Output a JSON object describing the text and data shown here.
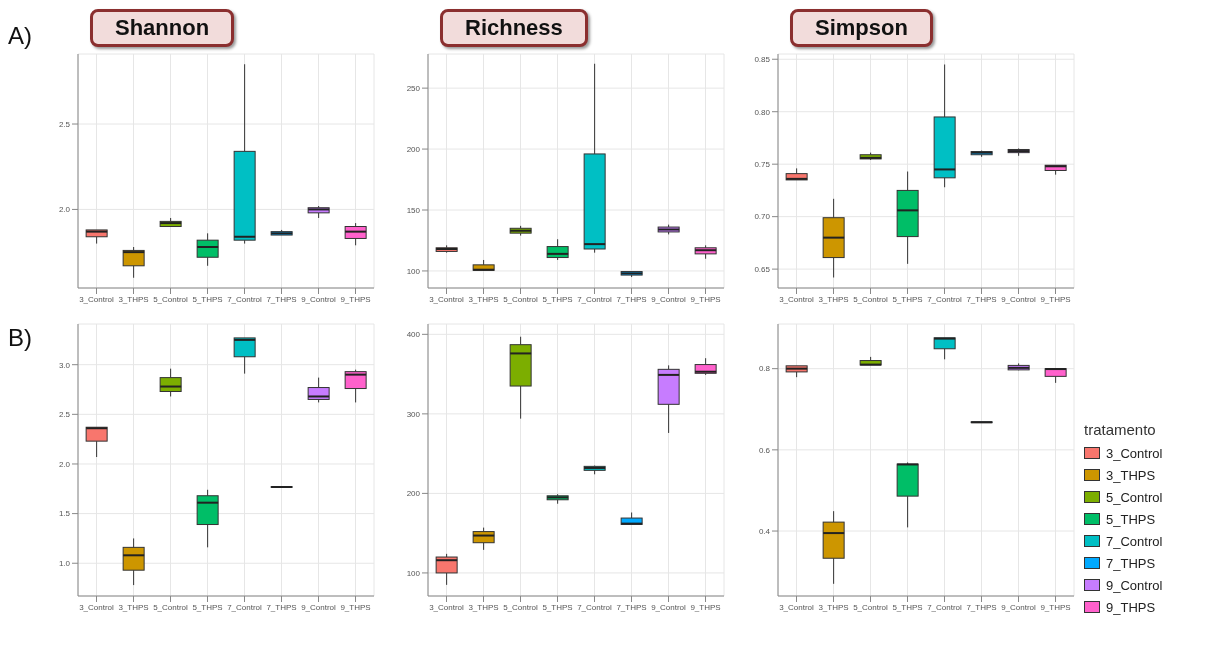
{
  "chart_data": [
    {
      "type": "box",
      "title": "Shannon",
      "annotations": [
        "A)"
      ],
      "categories": [
        "3_Control",
        "3_THPS",
        "5_Control",
        "5_THPS",
        "7_Control",
        "7_THPS",
        "9_Control",
        "9_THPS"
      ],
      "boxes": [
        {
          "low": 1.8,
          "q1": 1.84,
          "median": 1.87,
          "q3": 1.88,
          "high": 1.88
        },
        {
          "low": 1.6,
          "q1": 1.67,
          "median": 1.75,
          "q3": 1.76,
          "high": 1.78
        },
        {
          "low": 1.9,
          "q1": 1.9,
          "median": 1.92,
          "q3": 1.93,
          "high": 1.95
        },
        {
          "low": 1.67,
          "q1": 1.72,
          "median": 1.78,
          "q3": 1.82,
          "high": 1.86
        },
        {
          "low": 1.8,
          "q1": 1.82,
          "median": 1.84,
          "q3": 2.34,
          "high": 2.85
        },
        {
          "low": 1.85,
          "q1": 1.85,
          "median": 1.86,
          "q3": 1.87,
          "high": 1.88
        },
        {
          "low": 1.95,
          "q1": 1.98,
          "median": 2.0,
          "q3": 2.01,
          "high": 2.02
        },
        {
          "low": 1.79,
          "q1": 1.83,
          "median": 1.87,
          "q3": 1.9,
          "high": 1.92
        }
      ],
      "colors": [
        "#f8766d",
        "#cd9600",
        "#7cae00",
        "#00be67",
        "#00bfc4",
        "#00a9ff",
        "#c77cff",
        "#ff61cc"
      ],
      "ylim": [
        1.54,
        2.91
      ],
      "yticks": [
        {
          "value": 2,
          "label": "2.0"
        },
        2.5
      ],
      "grid": true
    },
    {
      "type": "box",
      "title": "Richness",
      "categories": [
        "3_Control",
        "3_THPS",
        "5_Control",
        "5_THPS",
        "7_Control",
        "7_THPS",
        "9_Control",
        "9_THPS"
      ],
      "boxes": [
        {
          "low": 115,
          "q1": 116,
          "median": 118,
          "q3": 119,
          "high": 121
        },
        {
          "low": 100,
          "q1": 100.5,
          "median": 101,
          "q3": 105,
          "high": 109
        },
        {
          "low": 129,
          "q1": 131,
          "median": 133,
          "q3": 135,
          "high": 137
        },
        {
          "low": 109,
          "q1": 111,
          "median": 114,
          "q3": 120,
          "high": 126
        },
        {
          "low": 115,
          "q1": 118,
          "median": 122,
          "q3": 196,
          "high": 270
        },
        {
          "low": 95,
          "q1": 96.6,
          "median": 98,
          "q3": 99.5,
          "high": 99.5
        },
        {
          "low": 130,
          "q1": 132,
          "median": 134,
          "q3": 136,
          "high": 138
        },
        {
          "low": 110,
          "q1": 114,
          "median": 117,
          "q3": 119,
          "high": 121
        }
      ],
      "colors": [
        "#f8766d",
        "#cd9600",
        "#7cae00",
        "#00be67",
        "#00bfc4",
        "#00a9ff",
        "#c77cff",
        "#ff61cc"
      ],
      "ylim": [
        86,
        278
      ],
      "yticks": [
        100,
        150,
        200,
        250
      ],
      "grid": true
    },
    {
      "type": "box",
      "title": "Simpson",
      "categories": [
        "3_Control",
        "3_THPS",
        "5_Control",
        "5_THPS",
        "7_Control",
        "7_THPS",
        "9_Control",
        "9_THPS"
      ],
      "boxes": [
        {
          "low": 0.735,
          "q1": 0.735,
          "median": 0.736,
          "q3": 0.741,
          "high": 0.746
        },
        {
          "low": 0.642,
          "q1": 0.661,
          "median": 0.68,
          "q3": 0.699,
          "high": 0.717
        },
        {
          "low": 0.754,
          "q1": 0.755,
          "median": 0.756,
          "q3": 0.759,
          "high": 0.761
        },
        {
          "low": 0.655,
          "q1": 0.681,
          "median": 0.706,
          "q3": 0.725,
          "high": 0.743
        },
        {
          "low": 0.728,
          "q1": 0.737,
          "median": 0.745,
          "q3": 0.795,
          "high": 0.845
        },
        {
          "low": 0.757,
          "q1": 0.759,
          "median": 0.761,
          "q3": 0.762,
          "high": 0.763
        },
        {
          "low": 0.758,
          "q1": 0.761,
          "median": 0.7625,
          "q3": 0.764,
          "high": 0.765
        },
        {
          "low": 0.74,
          "q1": 0.744,
          "median": 0.748,
          "q3": 0.749,
          "high": 0.749
        }
      ],
      "colors": [
        "#f8766d",
        "#cd9600",
        "#7cae00",
        "#00be67",
        "#00bfc4",
        "#00a9ff",
        "#c77cff",
        "#ff61cc"
      ],
      "ylim": [
        0.632,
        0.855
      ],
      "yticks": [
        0.65,
        {
          "value": 0.7,
          "label": "0.70"
        },
        0.75,
        {
          "value": 0.8,
          "label": "0.80"
        },
        0.85
      ],
      "grid": true
    },
    {
      "type": "box",
      "annotations": [
        "B)"
      ],
      "categories": [
        "3_Control",
        "3_THPS",
        "5_Control",
        "5_THPS",
        "7_Control",
        "7_THPS",
        "9_Control",
        "9_THPS"
      ],
      "boxes": [
        {
          "low": 2.07,
          "q1": 2.23,
          "median": 2.36,
          "q3": 2.37,
          "high": 2.37
        },
        {
          "low": 0.78,
          "q1": 0.93,
          "median": 1.08,
          "q3": 1.16,
          "high": 1.25
        },
        {
          "low": 2.68,
          "q1": 2.73,
          "median": 2.78,
          "q3": 2.87,
          "high": 2.96
        },
        {
          "low": 1.16,
          "q1": 1.39,
          "median": 1.61,
          "q3": 1.68,
          "high": 1.74
        },
        {
          "low": 2.91,
          "q1": 3.08,
          "median": 3.25,
          "q3": 3.27,
          "high": 3.27
        },
        {
          "low": 1.765,
          "q1": 1.765,
          "median": 1.768,
          "q3": 1.771,
          "high": 1.771
        },
        {
          "low": 2.62,
          "q1": 2.65,
          "median": 2.68,
          "q3": 2.77,
          "high": 2.87
        },
        {
          "low": 2.62,
          "q1": 2.76,
          "median": 2.9,
          "q3": 2.93,
          "high": 2.95
        }
      ],
      "colors": [
        "#f8766d",
        "#cd9600",
        "#7cae00",
        "#00be67",
        "#00bfc4",
        "#00a9ff",
        "#c77cff",
        "#ff61cc"
      ],
      "ylim": [
        0.67,
        3.41
      ],
      "yticks": [
        {
          "value": 1,
          "label": "1.0"
        },
        1.5,
        {
          "value": 2,
          "label": "2.0"
        },
        2.5,
        {
          "value": 3,
          "label": "3.0"
        }
      ],
      "grid": true
    },
    {
      "type": "box",
      "categories": [
        "3_Control",
        "3_THPS",
        "5_Control",
        "5_THPS",
        "7_Control",
        "7_THPS",
        "9_Control",
        "9_THPS"
      ],
      "boxes": [
        {
          "low": 85,
          "q1": 100,
          "median": 116,
          "q3": 120,
          "high": 124
        },
        {
          "low": 129,
          "q1": 138,
          "median": 147,
          "q3": 152,
          "high": 157
        },
        {
          "low": 294,
          "q1": 335,
          "median": 376,
          "q3": 387,
          "high": 397
        },
        {
          "low": 187,
          "q1": 192,
          "median": 195,
          "q3": 197,
          "high": 199
        },
        {
          "low": 224,
          "q1": 229,
          "median": 232,
          "q3": 234,
          "high": 235
        },
        {
          "low": 161,
          "q1": 161,
          "median": 162,
          "q3": 169,
          "high": 176
        },
        {
          "low": 276,
          "q1": 312,
          "median": 349,
          "q3": 356,
          "high": 361
        },
        {
          "low": 349,
          "q1": 351,
          "median": 353,
          "q3": 362,
          "high": 370
        }
      ],
      "colors": [
        "#f8766d",
        "#cd9600",
        "#7cae00",
        "#00be67",
        "#00bfc4",
        "#00a9ff",
        "#c77cff",
        "#ff61cc"
      ],
      "ylim": [
        71,
        413
      ],
      "yticks": [
        100,
        200,
        300,
        400
      ],
      "grid": true
    },
    {
      "type": "box",
      "categories": [
        "3_Control",
        "3_THPS",
        "5_Control",
        "5_THPS",
        "7_Control",
        "7_THPS",
        "9_Control",
        "9_THPS"
      ],
      "series": [
        {
          "name": "3_Control",
          "color": "#f8766d",
          "boxes": [
            {
              "low": 0.779,
              "q1": 0.792,
              "median": 0.8,
              "q3": 0.807,
              "high": 0.807
            },
            null,
            null,
            null,
            null,
            null,
            null,
            null
          ]
        },
        {
          "name": "3_THPS",
          "color": "#cd9600",
          "boxes": [
            null,
            {
              "low": 0.27,
              "q1": 0.333,
              "median": 0.395,
              "q3": 0.422,
              "high": 0.449
            },
            null,
            null,
            null,
            null,
            null,
            null
          ]
        },
        {
          "name": "5_Control",
          "color": "#7cae00",
          "boxes": [
            null,
            null,
            {
              "low": 0.809,
              "q1": 0.809,
              "median": 0.81,
              "q3": 0.82,
              "high": 0.829
            },
            null,
            null,
            null,
            null,
            null
          ]
        },
        {
          "name": "5_THPS",
          "color": "#00be67",
          "boxes": [
            null,
            null,
            null,
            {
              "low": 0.409,
              "q1": 0.486,
              "median": 0.564,
              "q3": 0.565,
              "high": 0.569
            },
            null,
            null,
            null,
            null
          ]
        },
        {
          "name": "7_Control",
          "color": "#00bfc4",
          "boxes": [
            null,
            null,
            null,
            null,
            {
              "low": 0.823,
              "q1": 0.849,
              "median": 0.874,
              "q3": 0.876,
              "high": 0.876
            },
            null,
            null,
            null
          ]
        },
        {
          "name": "7_THPS",
          "color": "#00a9ff",
          "boxes": [
            null,
            null,
            null,
            null,
            null,
            {
              "low": 0.667,
              "q1": 0.667,
              "median": 0.668,
              "q3": 0.669,
              "high": 0.669
            },
            null,
            null
          ]
        },
        {
          "name": "9_Control",
          "color": "#c77cff",
          "boxes": [
            null,
            null,
            null,
            null,
            null,
            null,
            {
              "low": 0.796,
              "q1": 0.797,
              "median": 0.802,
              "q3": 0.808,
              "high": 0.813
            },
            null
          ]
        },
        {
          "name": "9_THPS",
          "color": "#ff61cc",
          "boxes": [
            null,
            null,
            null,
            null,
            null,
            null,
            null,
            {
              "low": 0.765,
              "q1": 0.781,
              "median": 0.799,
              "q3": 0.8,
              "high": 0.8
            }
          ]
        }
      ],
      "ylim": [
        0.24,
        0.91
      ],
      "yticks": [
        0.4,
        0.6,
        0.8
      ],
      "grid": true,
      "legend": "right",
      "legend_title": "tratamento"
    }
  ]
}
